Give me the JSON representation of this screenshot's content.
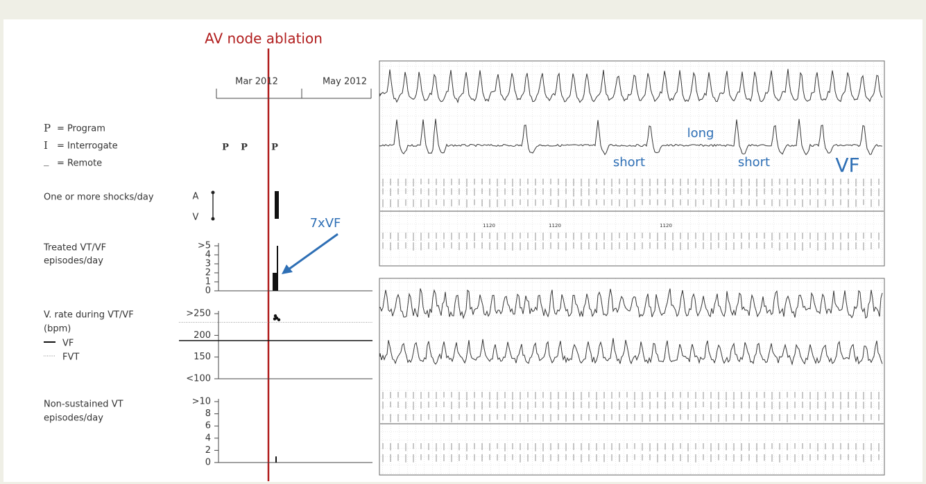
{
  "annotation": {
    "title": "AV node ablation",
    "arrow_label": "7xVF"
  },
  "timeline": {
    "ticks": [
      "Mar 2012",
      "May 2012"
    ],
    "events": [
      "P",
      "P",
      "P"
    ]
  },
  "legend": [
    {
      "symbol": "P",
      "text": "= Program"
    },
    {
      "symbol": "I",
      "text": "= Interrogate"
    },
    {
      "symbol": "_",
      "text": "= Remote"
    }
  ],
  "shocks": {
    "label": "One or more shocks/day",
    "rows": [
      "A",
      "V"
    ]
  },
  "treated": {
    "label": [
      "Treated VT/VF",
      "episodes/day"
    ],
    "ylim": [
      0,
      5
    ],
    "yticks": [
      0,
      1,
      2,
      3,
      4,
      {
        "value": 5,
        "label": ">5"
      }
    ],
    "values": [
      2,
      5
    ]
  },
  "vrate": {
    "label": [
      "V. rate during VT/VF",
      "(bpm)"
    ],
    "ylim": [
      100,
      250
    ],
    "yticks": [
      {
        "value": 100,
        "label": "<100"
      },
      150,
      200,
      {
        "value": 250,
        "label": ">250"
      }
    ],
    "series": [
      {
        "name": "VF",
        "value": 188
      },
      {
        "name": "FVT",
        "value": 230
      }
    ],
    "points": [
      245,
      240,
      236,
      238
    ]
  },
  "nsvt": {
    "label": [
      "Non-sustained VT",
      "episodes/day"
    ],
    "ylim": [
      0,
      10
    ],
    "yticks": [
      0,
      2,
      4,
      6,
      8,
      {
        "value": 10,
        "label": ">10"
      }
    ],
    "values": [
      1
    ]
  },
  "strip_top": {
    "annotations": [
      "long",
      "short",
      "short",
      "VF"
    ],
    "intervals": [
      "1120",
      "1120",
      "1120"
    ]
  }
}
